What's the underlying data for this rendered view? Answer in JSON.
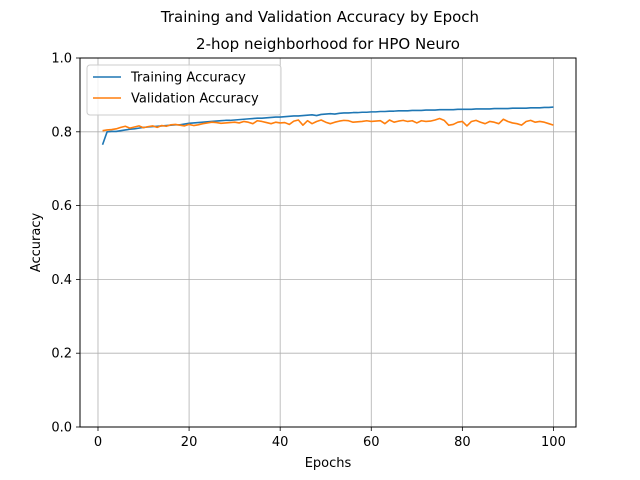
{
  "figure": {
    "suptitle": "Training and Validation Accuracy by Epoch"
  },
  "chart_data": {
    "type": "line",
    "title": "2-hop neighborhood for HPO Neuro",
    "xlabel": "Epochs",
    "ylabel": "Accuracy",
    "xlim": [
      -3.95,
      104.95
    ],
    "ylim": [
      0.0,
      1.0
    ],
    "xticks": [
      0,
      20,
      40,
      60,
      80,
      100
    ],
    "yticks": [
      0.0,
      0.2,
      0.4,
      0.6,
      0.8,
      1.0
    ],
    "xtick_labels": [
      "0",
      "20",
      "40",
      "60",
      "80",
      "100"
    ],
    "ytick_labels": [
      "0.0",
      "0.2",
      "0.4",
      "0.6",
      "0.8",
      "1.0"
    ],
    "grid": true,
    "legend_position": "upper-left",
    "x": [
      1,
      2,
      3,
      4,
      5,
      6,
      7,
      8,
      9,
      10,
      11,
      12,
      13,
      14,
      15,
      16,
      17,
      18,
      19,
      20,
      21,
      22,
      23,
      24,
      25,
      26,
      27,
      28,
      29,
      30,
      31,
      32,
      33,
      34,
      35,
      36,
      37,
      38,
      39,
      40,
      41,
      42,
      43,
      44,
      45,
      46,
      47,
      48,
      49,
      50,
      51,
      52,
      53,
      54,
      55,
      56,
      57,
      58,
      59,
      60,
      61,
      62,
      63,
      64,
      65,
      66,
      67,
      68,
      69,
      70,
      71,
      72,
      73,
      74,
      75,
      76,
      77,
      78,
      79,
      80,
      81,
      82,
      83,
      84,
      85,
      86,
      87,
      88,
      89,
      90,
      91,
      92,
      93,
      94,
      95,
      96,
      97,
      98,
      99,
      100
    ],
    "series": [
      {
        "name": "Training Accuracy",
        "color": "#1f77b4",
        "values": [
          0.765,
          0.8,
          0.801,
          0.801,
          0.803,
          0.805,
          0.807,
          0.808,
          0.81,
          0.812,
          0.813,
          0.814,
          0.815,
          0.816,
          0.817,
          0.818,
          0.819,
          0.819,
          0.821,
          0.823,
          0.824,
          0.825,
          0.826,
          0.827,
          0.828,
          0.829,
          0.83,
          0.831,
          0.831,
          0.832,
          0.833,
          0.834,
          0.835,
          0.836,
          0.837,
          0.837,
          0.838,
          0.839,
          0.84,
          0.84,
          0.841,
          0.842,
          0.843,
          0.843,
          0.844,
          0.845,
          0.846,
          0.844,
          0.847,
          0.848,
          0.849,
          0.848,
          0.85,
          0.851,
          0.851,
          0.852,
          0.852,
          0.853,
          0.853,
          0.854,
          0.854,
          0.855,
          0.855,
          0.856,
          0.856,
          0.857,
          0.857,
          0.857,
          0.858,
          0.858,
          0.858,
          0.859,
          0.859,
          0.859,
          0.86,
          0.86,
          0.86,
          0.86,
          0.861,
          0.861,
          0.861,
          0.861,
          0.862,
          0.862,
          0.862,
          0.862,
          0.863,
          0.863,
          0.863,
          0.863,
          0.864,
          0.864,
          0.864,
          0.864,
          0.865,
          0.865,
          0.865,
          0.866,
          0.866,
          0.867
        ]
      },
      {
        "name": "Validation Accuracy",
        "color": "#ff7f0e",
        "values": [
          0.803,
          0.805,
          0.806,
          0.808,
          0.812,
          0.815,
          0.81,
          0.813,
          0.816,
          0.811,
          0.814,
          0.816,
          0.812,
          0.817,
          0.815,
          0.819,
          0.82,
          0.818,
          0.816,
          0.82,
          0.817,
          0.819,
          0.822,
          0.824,
          0.826,
          0.825,
          0.823,
          0.824,
          0.825,
          0.826,
          0.824,
          0.828,
          0.826,
          0.822,
          0.83,
          0.828,
          0.825,
          0.822,
          0.826,
          0.824,
          0.825,
          0.82,
          0.829,
          0.832,
          0.818,
          0.83,
          0.822,
          0.828,
          0.832,
          0.826,
          0.822,
          0.826,
          0.829,
          0.831,
          0.83,
          0.826,
          0.827,
          0.828,
          0.83,
          0.828,
          0.829,
          0.83,
          0.822,
          0.832,
          0.826,
          0.829,
          0.831,
          0.828,
          0.83,
          0.824,
          0.83,
          0.828,
          0.829,
          0.832,
          0.836,
          0.831,
          0.818,
          0.82,
          0.826,
          0.828,
          0.816,
          0.828,
          0.831,
          0.826,
          0.822,
          0.828,
          0.826,
          0.822,
          0.834,
          0.828,
          0.824,
          0.822,
          0.818,
          0.828,
          0.831,
          0.826,
          0.828,
          0.826,
          0.822,
          0.818
        ]
      }
    ]
  }
}
